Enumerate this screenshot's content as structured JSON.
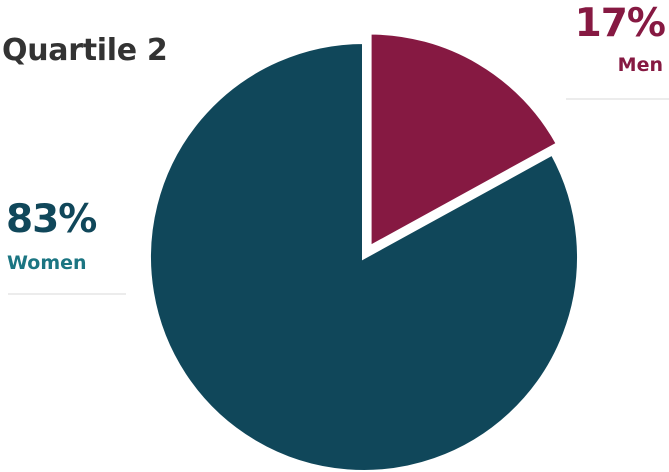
{
  "title": "Quartile 2",
  "chart_data": {
    "type": "pie",
    "title": "Quartile 2",
    "slices": [
      {
        "label": "Men",
        "value": 17,
        "display": "17%",
        "color": "#861942",
        "exploded": true
      },
      {
        "label": "Women",
        "value": 83,
        "display": "83%",
        "color": "#10475a",
        "exploded": false
      }
    ],
    "start_angle": "12 o'clock, clockwise"
  },
  "labels": {
    "men": {
      "percent": "17%",
      "name": "Men"
    },
    "women": {
      "percent": "83%",
      "name": "Women"
    }
  }
}
